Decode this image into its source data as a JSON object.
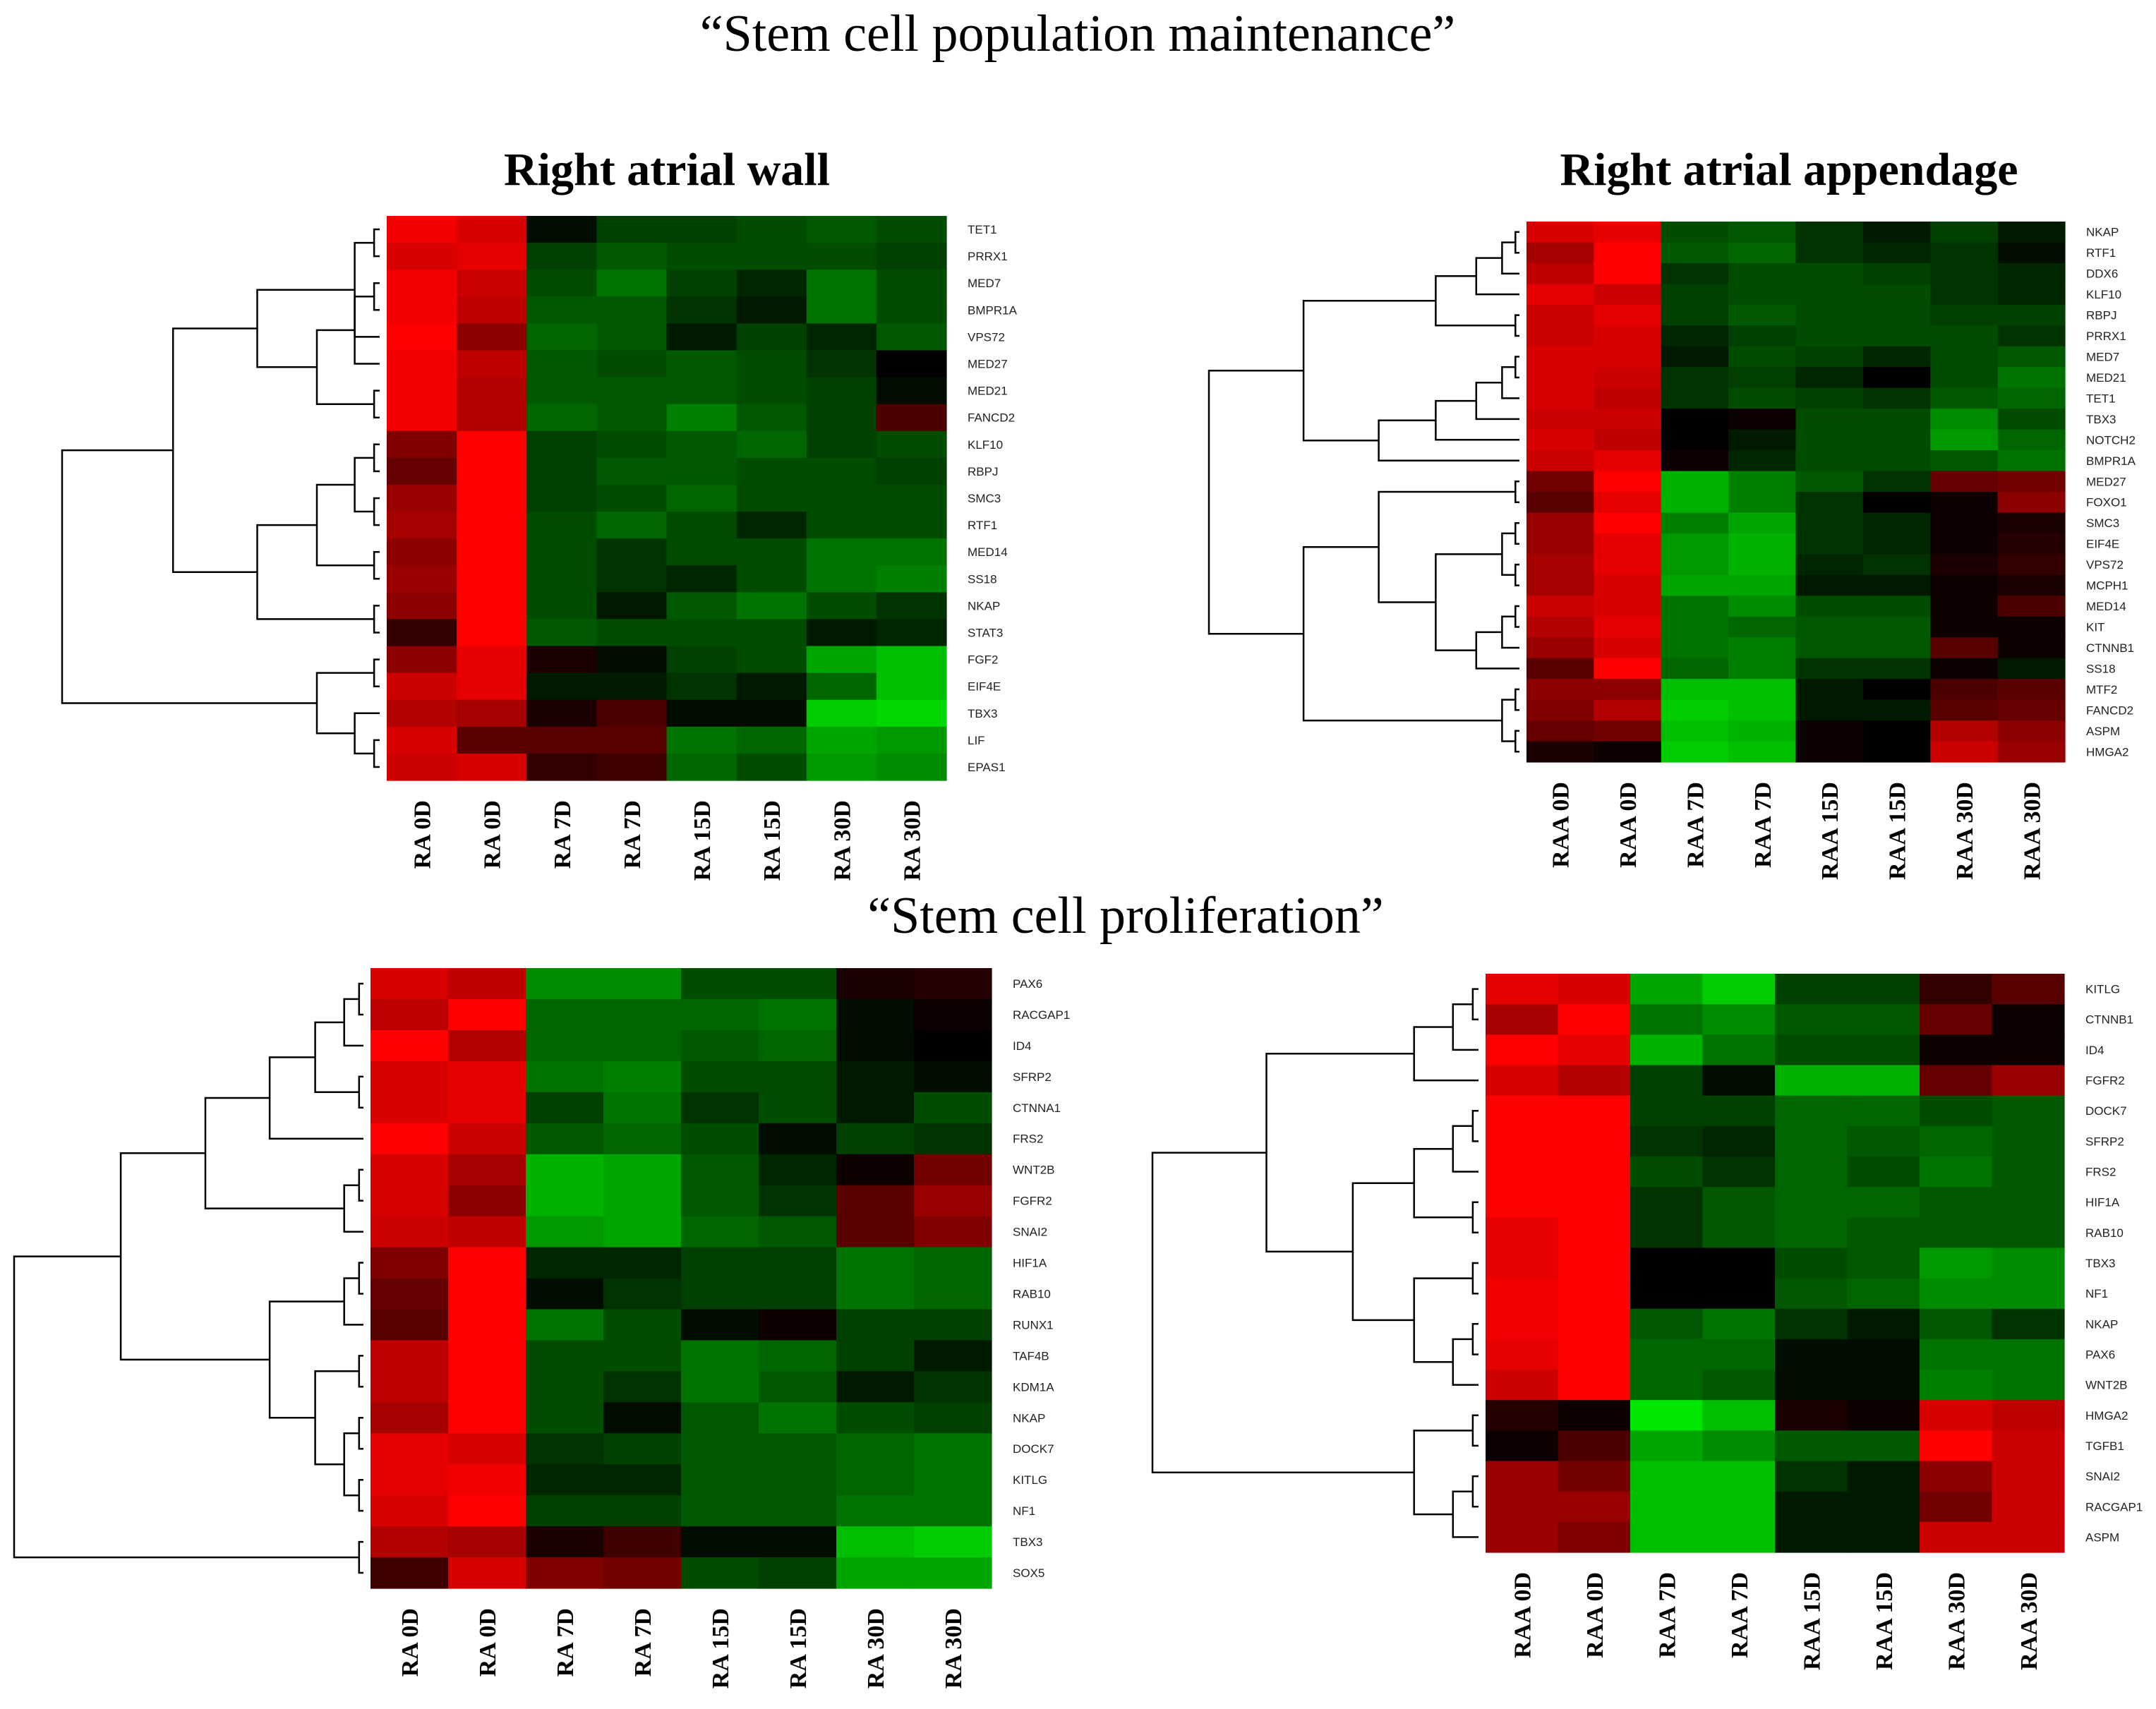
{
  "section_titles": {
    "maintenance": "“Stem cell population maintenance”",
    "proliferation": "“Stem cell proliferation”"
  },
  "colors": {
    "high": "#ff0000",
    "mid": "#000000",
    "low": "#00ff00"
  },
  "chart_data": [
    {
      "type": "heatmap",
      "title": "Right atrial wall",
      "columns": [
        "RA 0D",
        "RA 0D",
        "RA 7D",
        "RA 7D",
        "RA 15D",
        "RA 15D",
        "RA 30D",
        "RA 30D"
      ],
      "rows": [
        "TET1",
        "PRRX1",
        "MED7",
        "BMPR1A",
        "VPS72",
        "MED27",
        "MED21",
        "FANCD2",
        "KLF10",
        "RBPJ",
        "SMC3",
        "RTF1",
        "MED14",
        "SS18",
        "NKAP",
        "STAT3",
        "FGF2",
        "EIF4E",
        "TBX3",
        "LIF",
        "EPAS1"
      ],
      "values": [
        [
          0.95,
          0.85,
          -0.05,
          -0.25,
          -0.25,
          -0.3,
          -0.35,
          -0.3
        ],
        [
          0.85,
          0.9,
          -0.25,
          -0.35,
          -0.3,
          -0.3,
          -0.3,
          -0.25
        ],
        [
          0.95,
          0.8,
          -0.3,
          -0.45,
          -0.25,
          -0.15,
          -0.45,
          -0.3
        ],
        [
          0.95,
          0.75,
          -0.35,
          -0.35,
          -0.2,
          -0.1,
          -0.45,
          -0.3
        ],
        [
          1.0,
          0.55,
          -0.4,
          -0.35,
          -0.1,
          -0.25,
          -0.15,
          -0.35
        ],
        [
          0.95,
          0.75,
          -0.35,
          -0.3,
          -0.35,
          -0.3,
          -0.2,
          0.0
        ],
        [
          0.95,
          0.7,
          -0.35,
          -0.35,
          -0.35,
          -0.3,
          -0.25,
          -0.05
        ],
        [
          0.95,
          0.7,
          -0.4,
          -0.35,
          -0.5,
          -0.35,
          -0.25,
          0.3
        ],
        [
          0.5,
          1.0,
          -0.25,
          -0.3,
          -0.35,
          -0.4,
          -0.25,
          -0.3
        ],
        [
          0.4,
          1.0,
          -0.25,
          -0.35,
          -0.35,
          -0.3,
          -0.3,
          -0.25
        ],
        [
          0.6,
          1.0,
          -0.25,
          -0.3,
          -0.4,
          -0.3,
          -0.3,
          -0.3
        ],
        [
          0.65,
          1.0,
          -0.3,
          -0.4,
          -0.3,
          -0.15,
          -0.3,
          -0.3
        ],
        [
          0.55,
          1.0,
          -0.3,
          -0.2,
          -0.3,
          -0.3,
          -0.45,
          -0.45
        ],
        [
          0.6,
          1.0,
          -0.3,
          -0.2,
          -0.15,
          -0.3,
          -0.45,
          -0.5
        ],
        [
          0.55,
          1.0,
          -0.3,
          -0.1,
          -0.35,
          -0.45,
          -0.3,
          -0.2
        ],
        [
          0.2,
          1.0,
          -0.35,
          -0.3,
          -0.3,
          -0.3,
          -0.1,
          -0.15
        ],
        [
          0.55,
          0.9,
          0.1,
          -0.05,
          -0.25,
          -0.3,
          -0.65,
          -0.75
        ],
        [
          0.8,
          0.9,
          -0.1,
          -0.1,
          -0.2,
          -0.1,
          -0.4,
          -0.75
        ],
        [
          0.7,
          0.65,
          0.1,
          0.3,
          -0.05,
          -0.05,
          -0.8,
          -0.85
        ],
        [
          0.85,
          0.35,
          0.35,
          0.35,
          -0.45,
          -0.4,
          -0.65,
          -0.6
        ],
        [
          0.8,
          0.85,
          0.2,
          0.25,
          -0.4,
          -0.3,
          -0.6,
          -0.55
        ]
      ],
      "dendrogram": [
        [
          0,
          1
        ],
        [
          2,
          3
        ],
        [
          21,
          4
        ],
        [
          22,
          5
        ],
        [
          6,
          7
        ],
        [
          24,
          25
        ],
        [
          23,
          26
        ],
        [
          8,
          9
        ],
        [
          10,
          11
        ],
        [
          28,
          29
        ],
        [
          12,
          13
        ],
        [
          30,
          31
        ],
        [
          14,
          15
        ],
        [
          32,
          33
        ],
        [
          27,
          34
        ],
        [
          16,
          17
        ],
        [
          19,
          20
        ],
        [
          18,
          37
        ],
        [
          36,
          38
        ],
        [
          35,
          39
        ]
      ]
    },
    {
      "type": "heatmap",
      "title": "Right atrial appendage",
      "columns": [
        "RAA 0D",
        "RAA 0D",
        "RAA 7D",
        "RAA 7D",
        "RAA 15D",
        "RAA 15D",
        "RAA 30D",
        "RAA 30D"
      ],
      "rows": [
        "NKAP",
        "RTF1",
        "DDX6",
        "KLF10",
        "RBPJ",
        "PRRX1",
        "MED7",
        "MED21",
        "TET1",
        "TBX3",
        "NOTCH2",
        "BMPR1A",
        "MED27",
        "FOXO1",
        "SMC3",
        "EIF4E",
        "VPS72",
        "MCPH1",
        "MED14",
        "KIT",
        "CTNNB1",
        "SS18",
        "MTF2",
        "FANCD2",
        "ASPM",
        "HMGA2"
      ],
      "values": [
        [
          0.85,
          0.9,
          -0.3,
          -0.35,
          -0.2,
          -0.1,
          -0.25,
          -0.1
        ],
        [
          0.65,
          1.0,
          -0.35,
          -0.4,
          -0.2,
          -0.15,
          -0.2,
          -0.05
        ],
        [
          0.75,
          1.0,
          -0.2,
          -0.3,
          -0.3,
          -0.25,
          -0.2,
          -0.15
        ],
        [
          0.9,
          0.8,
          -0.25,
          -0.3,
          -0.3,
          -0.3,
          -0.2,
          -0.15
        ],
        [
          0.8,
          0.9,
          -0.25,
          -0.35,
          -0.3,
          -0.3,
          -0.25,
          -0.25
        ],
        [
          0.8,
          0.85,
          -0.15,
          -0.25,
          -0.3,
          -0.3,
          -0.3,
          -0.2
        ],
        [
          0.85,
          0.85,
          -0.1,
          -0.3,
          -0.25,
          -0.15,
          -0.3,
          -0.35
        ],
        [
          0.85,
          0.8,
          -0.2,
          -0.25,
          -0.15,
          0.0,
          -0.3,
          -0.45
        ],
        [
          0.85,
          0.75,
          -0.2,
          -0.3,
          -0.25,
          -0.2,
          -0.35,
          -0.4
        ],
        [
          0.8,
          0.8,
          0.0,
          0.05,
          -0.3,
          -0.3,
          -0.55,
          -0.3
        ],
        [
          0.85,
          0.75,
          0.0,
          -0.1,
          -0.3,
          -0.3,
          -0.6,
          -0.4
        ],
        [
          0.8,
          0.9,
          0.05,
          -0.15,
          -0.3,
          -0.3,
          -0.35,
          -0.45
        ],
        [
          0.45,
          1.0,
          -0.7,
          -0.5,
          -0.35,
          -0.2,
          0.4,
          0.45
        ],
        [
          0.35,
          0.9,
          -0.7,
          -0.5,
          -0.2,
          0.0,
          0.05,
          0.55
        ],
        [
          0.6,
          1.0,
          -0.5,
          -0.65,
          -0.2,
          -0.15,
          0.05,
          0.1
        ],
        [
          0.6,
          0.9,
          -0.6,
          -0.7,
          -0.2,
          -0.15,
          0.05,
          0.15
        ],
        [
          0.65,
          0.9,
          -0.6,
          -0.7,
          -0.15,
          -0.2,
          0.1,
          0.2
        ],
        [
          0.65,
          0.85,
          -0.65,
          -0.65,
          -0.1,
          -0.1,
          0.05,
          0.1
        ],
        [
          0.8,
          0.85,
          -0.45,
          -0.55,
          -0.3,
          -0.3,
          0.05,
          0.3
        ],
        [
          0.7,
          0.9,
          -0.45,
          -0.4,
          -0.35,
          -0.35,
          0.05,
          0.05
        ],
        [
          0.6,
          0.85,
          -0.45,
          -0.5,
          -0.35,
          -0.35,
          0.35,
          0.05
        ],
        [
          0.35,
          1.0,
          -0.4,
          -0.5,
          -0.2,
          -0.2,
          0.05,
          -0.1
        ],
        [
          0.55,
          0.55,
          -0.75,
          -0.75,
          -0.1,
          0.0,
          0.3,
          0.35
        ],
        [
          0.5,
          0.7,
          -0.8,
          -0.75,
          -0.1,
          -0.1,
          0.35,
          0.4
        ],
        [
          0.4,
          0.45,
          -0.75,
          -0.7,
          0.05,
          0.0,
          0.7,
          0.55
        ],
        [
          0.1,
          0.05,
          -0.8,
          -0.75,
          0.05,
          0.0,
          0.8,
          0.6
        ]
      ],
      "dendrogram": [
        [
          0,
          1
        ],
        [
          26,
          2
        ],
        [
          27,
          3
        ],
        [
          4,
          5
        ],
        [
          28,
          29
        ],
        [
          6,
          7
        ],
        [
          31,
          8
        ],
        [
          32,
          9
        ],
        [
          33,
          10
        ],
        [
          34,
          11
        ],
        [
          30,
          35
        ],
        [
          12,
          13
        ],
        [
          14,
          15
        ],
        [
          16,
          17
        ],
        [
          38,
          39
        ],
        [
          18,
          19
        ],
        [
          41,
          20
        ],
        [
          42,
          21
        ],
        [
          40,
          43
        ],
        [
          37,
          44
        ],
        [
          22,
          23
        ],
        [
          24,
          25
        ],
        [
          46,
          47
        ],
        [
          45,
          48
        ],
        [
          36,
          49
        ]
      ]
    },
    {
      "type": "heatmap",
      "title": "",
      "columns": [
        "RA 0D",
        "RA 0D",
        "RA 7D",
        "RA 7D",
        "RA 15D",
        "RA 15D",
        "RA 30D",
        "RA 30D"
      ],
      "rows": [
        "PAX6",
        "RACGAP1",
        "ID4",
        "SFRP2",
        "CTNNA1",
        "FRS2",
        "WNT2B",
        "FGFR2",
        "SNAI2",
        "HIF1A",
        "RAB10",
        "RUNX1",
        "TAF4B",
        "KDM1A",
        "NKAP",
        "DOCK7",
        "KITLG",
        "NF1",
        "TBX3",
        "SOX5"
      ],
      "values": [
        [
          0.85,
          0.75,
          -0.55,
          -0.55,
          -0.3,
          -0.3,
          0.1,
          0.15
        ],
        [
          0.75,
          1.0,
          -0.4,
          -0.4,
          -0.4,
          -0.45,
          -0.05,
          0.05
        ],
        [
          1.0,
          0.7,
          -0.4,
          -0.4,
          -0.35,
          -0.4,
          -0.05,
          0.0
        ],
        [
          0.85,
          0.9,
          -0.45,
          -0.5,
          -0.3,
          -0.3,
          -0.1,
          -0.05
        ],
        [
          0.85,
          0.9,
          -0.25,
          -0.45,
          -0.2,
          -0.3,
          -0.1,
          -0.3
        ],
        [
          1.0,
          0.8,
          -0.35,
          -0.4,
          -0.3,
          -0.05,
          -0.25,
          -0.2
        ],
        [
          0.85,
          0.65,
          -0.7,
          -0.65,
          -0.35,
          -0.15,
          0.05,
          0.45
        ],
        [
          0.85,
          0.55,
          -0.7,
          -0.65,
          -0.35,
          -0.2,
          0.35,
          0.6
        ],
        [
          0.8,
          0.75,
          -0.6,
          -0.65,
          -0.4,
          -0.35,
          0.35,
          0.5
        ],
        [
          0.5,
          1.0,
          -0.15,
          -0.15,
          -0.25,
          -0.25,
          -0.45,
          -0.4
        ],
        [
          0.4,
          1.0,
          -0.05,
          -0.2,
          -0.25,
          -0.25,
          -0.45,
          -0.4
        ],
        [
          0.35,
          1.0,
          -0.45,
          -0.3,
          -0.05,
          0.05,
          -0.25,
          -0.25
        ],
        [
          0.75,
          1.0,
          -0.3,
          -0.3,
          -0.45,
          -0.4,
          -0.25,
          -0.1
        ],
        [
          0.75,
          1.0,
          -0.3,
          -0.2,
          -0.45,
          -0.35,
          -0.1,
          -0.2
        ],
        [
          0.65,
          1.0,
          -0.3,
          -0.05,
          -0.35,
          -0.45,
          -0.3,
          -0.25
        ],
        [
          0.9,
          0.85,
          -0.2,
          -0.25,
          -0.35,
          -0.35,
          -0.4,
          -0.45
        ],
        [
          0.9,
          0.95,
          -0.15,
          -0.15,
          -0.35,
          -0.35,
          -0.4,
          -0.45
        ],
        [
          0.85,
          1.0,
          -0.25,
          -0.25,
          -0.35,
          -0.35,
          -0.45,
          -0.45
        ],
        [
          0.7,
          0.65,
          0.1,
          0.25,
          -0.05,
          -0.05,
          -0.75,
          -0.8
        ],
        [
          0.25,
          0.85,
          0.5,
          0.45,
          -0.3,
          -0.25,
          -0.65,
          -0.65
        ]
      ],
      "dendrogram": [
        [
          0,
          1
        ],
        [
          20,
          2
        ],
        [
          3,
          4
        ],
        [
          21,
          22
        ],
        [
          23,
          5
        ],
        [
          6,
          7
        ],
        [
          25,
          8
        ],
        [
          24,
          26
        ],
        [
          9,
          10
        ],
        [
          28,
          11
        ],
        [
          12,
          13
        ],
        [
          14,
          15
        ],
        [
          16,
          17
        ],
        [
          31,
          32
        ],
        [
          30,
          33
        ],
        [
          29,
          34
        ],
        [
          27,
          35
        ],
        [
          18,
          19
        ],
        [
          36,
          37
        ]
      ]
    },
    {
      "type": "heatmap",
      "title": "",
      "columns": [
        "RAA 0D",
        "RAA 0D",
        "RAA 7D",
        "RAA 7D",
        "RAA 15D",
        "RAA 15D",
        "RAA 30D",
        "RAA 30D"
      ],
      "rows": [
        "KITLG",
        "CTNNB1",
        "ID4",
        "FGFR2",
        "DOCK7",
        "SFRP2",
        "FRS2",
        "HIF1A",
        "RAB10",
        "TBX3",
        "NF1",
        "NKAP",
        "PAX6",
        "WNT2B",
        "HMGA2",
        "TGFB1",
        "SNAI2",
        "RACGAP1",
        "ASPM"
      ],
      "values": [
        [
          0.9,
          0.85,
          -0.65,
          -0.8,
          -0.25,
          -0.25,
          0.2,
          0.35
        ],
        [
          0.65,
          1.0,
          -0.45,
          -0.55,
          -0.35,
          -0.35,
          0.4,
          0.05
        ],
        [
          1.0,
          0.9,
          -0.7,
          -0.45,
          -0.3,
          -0.3,
          0.05,
          0.05
        ],
        [
          0.85,
          0.7,
          -0.25,
          -0.05,
          -0.7,
          -0.7,
          0.4,
          0.6
        ],
        [
          1.0,
          1.0,
          -0.25,
          -0.25,
          -0.4,
          -0.4,
          -0.3,
          -0.35
        ],
        [
          1.0,
          1.0,
          -0.2,
          -0.15,
          -0.4,
          -0.35,
          -0.4,
          -0.35
        ],
        [
          1.0,
          1.0,
          -0.3,
          -0.2,
          -0.4,
          -0.3,
          -0.45,
          -0.35
        ],
        [
          1.0,
          1.0,
          -0.2,
          -0.35,
          -0.4,
          -0.4,
          -0.35,
          -0.35
        ],
        [
          0.9,
          1.0,
          -0.2,
          -0.35,
          -0.4,
          -0.35,
          -0.35,
          -0.35
        ],
        [
          0.9,
          1.0,
          0.0,
          0.0,
          -0.3,
          -0.35,
          -0.6,
          -0.55
        ],
        [
          0.95,
          1.0,
          0.0,
          0.0,
          -0.35,
          -0.4,
          -0.55,
          -0.55
        ],
        [
          0.95,
          1.0,
          -0.35,
          -0.45,
          -0.2,
          -0.1,
          -0.35,
          -0.2
        ],
        [
          0.9,
          1.0,
          -0.4,
          -0.4,
          -0.05,
          -0.05,
          -0.45,
          -0.45
        ],
        [
          0.8,
          1.0,
          -0.4,
          -0.35,
          -0.05,
          -0.05,
          -0.5,
          -0.45
        ],
        [
          0.15,
          0.05,
          -0.9,
          -0.75,
          0.1,
          0.05,
          0.85,
          0.75
        ],
        [
          0.05,
          0.3,
          -0.65,
          -0.55,
          -0.35,
          -0.35,
          1.0,
          0.8
        ],
        [
          0.6,
          0.45,
          -0.75,
          -0.75,
          -0.2,
          -0.1,
          0.55,
          0.8
        ],
        [
          0.6,
          0.6,
          -0.75,
          -0.75,
          -0.1,
          -0.1,
          0.45,
          0.8
        ],
        [
          0.6,
          0.5,
          -0.75,
          -0.75,
          -0.1,
          -0.1,
          0.8,
          0.8
        ]
      ],
      "dendrogram": [
        [
          0,
          1
        ],
        [
          19,
          2
        ],
        [
          20,
          3
        ],
        [
          4,
          5
        ],
        [
          22,
          6
        ],
        [
          7,
          8
        ],
        [
          23,
          24
        ],
        [
          9,
          10
        ],
        [
          11,
          12
        ],
        [
          27,
          13
        ],
        [
          26,
          28
        ],
        [
          25,
          29
        ],
        [
          21,
          30
        ],
        [
          14,
          15
        ],
        [
          16,
          17
        ],
        [
          33,
          18
        ],
        [
          32,
          34
        ],
        [
          31,
          35
        ]
      ]
    }
  ]
}
